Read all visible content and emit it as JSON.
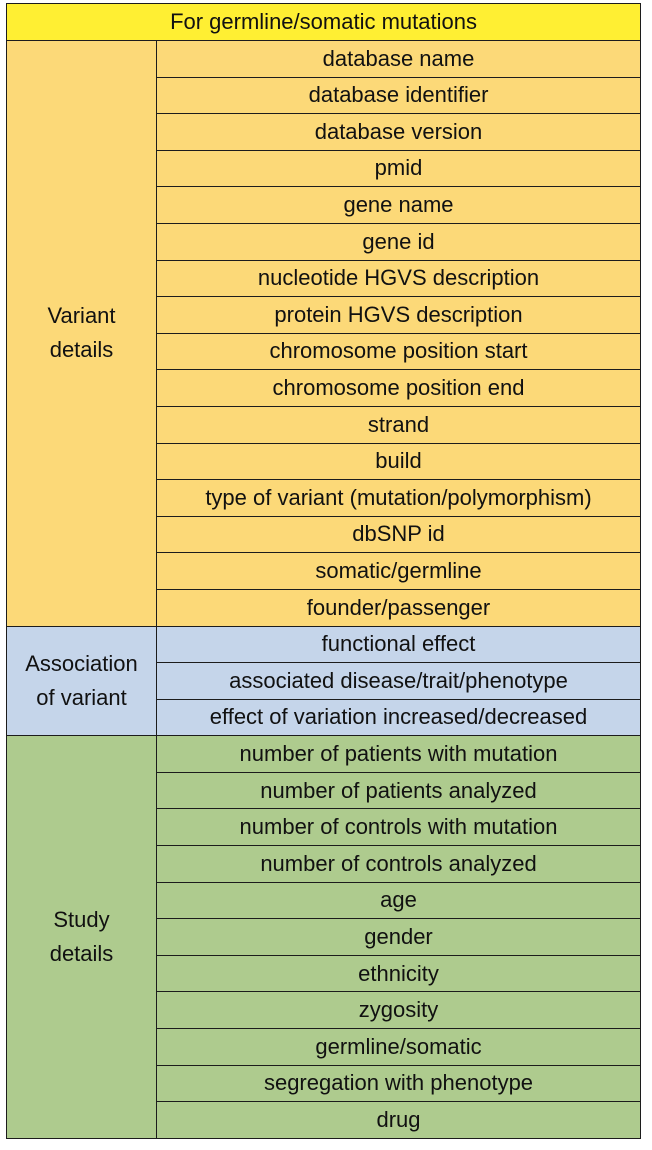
{
  "title": "For germline/somatic mutations",
  "groups": [
    {
      "label": "Variant\ndetails",
      "color": "#fcd978",
      "fields": [
        "database name",
        "database identifier",
        "database version",
        "pmid",
        "gene name",
        "gene id",
        "nucleotide HGVS description",
        "protein HGVS description",
        "chromosome position start",
        "chromosome position end",
        "strand",
        "build",
        "type of variant (mutation/polymorphism)",
        "dbSNP id",
        "somatic/germline",
        "founder/passenger"
      ]
    },
    {
      "label": "Association\nof variant",
      "color": "#c5d5ea",
      "fields": [
        "functional effect",
        "associated disease/trait/phenotype",
        "effect of variation increased/decreased"
      ]
    },
    {
      "label": "Study\ndetails",
      "color": "#aecb8e",
      "fields": [
        "number of patients with mutation",
        "number of patients analyzed",
        "number of controls with mutation",
        "number of controls analyzed",
        "age",
        "gender",
        "ethnicity",
        "zygosity",
        "germline/somatic",
        "segregation with phenotype",
        "drug"
      ]
    }
  ]
}
